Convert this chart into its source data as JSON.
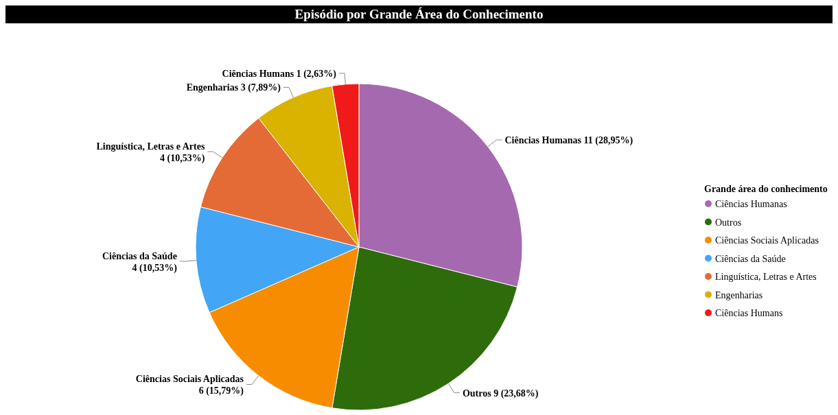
{
  "chart_data": {
    "type": "pie",
    "title": "Episódio por Grande Área do Conhecimento",
    "legend_title": "Grande área do conhecimento",
    "legend": "right",
    "categories": [
      "Ciências Humanas",
      "Outros",
      "Ciências Sociais Aplicadas",
      "Ciências da Saúde",
      "Linguística, Letras e Artes",
      "Engenharias",
      "Ciências Humans"
    ],
    "values": [
      11,
      9,
      6,
      4,
      4,
      3,
      1
    ],
    "value_labels": [
      "11 (28,95%)",
      "9 (23,68%)",
      "6 (15,79%)",
      "4 (10,53%)",
      "4 (10,53%)",
      "3 (7,89%)",
      "1 (2,63%)"
    ],
    "colors": [
      "#a569b0",
      "#2e6b0a",
      "#f88c00",
      "#42a5f5",
      "#e56b36",
      "#d9b300",
      "#f01a1a"
    ]
  }
}
